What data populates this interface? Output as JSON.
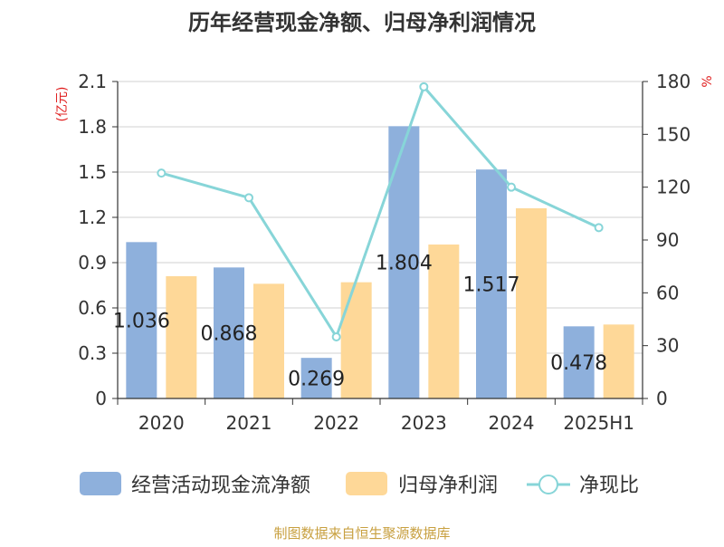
{
  "chart_data": {
    "type": "bar",
    "title": "历年经营现金净额、归母净利润情况",
    "categories": [
      "2020",
      "2021",
      "2022",
      "2023",
      "2024",
      "2025H1"
    ],
    "series": [
      {
        "name": "经营活动现金流净额",
        "type": "bar",
        "axis": "left",
        "values": [
          1.036,
          0.868,
          0.269,
          1.804,
          1.517,
          0.478
        ],
        "data_labels": [
          "1.036",
          "0.868",
          "0.269",
          "1.804",
          "1.517",
          "0.478"
        ]
      },
      {
        "name": "归母净利润",
        "type": "bar",
        "axis": "left",
        "values": [
          0.81,
          0.76,
          0.77,
          1.02,
          1.26,
          0.49
        ]
      },
      {
        "name": "净现比",
        "type": "line",
        "axis": "right",
        "values": [
          128,
          114,
          35,
          177,
          120,
          97
        ]
      }
    ],
    "y_left": {
      "unit": "(亿元)",
      "ylim": [
        0,
        2.1
      ],
      "ticks": [
        "0",
        "0.3",
        "0.6",
        "0.9",
        "1.2",
        "1.5",
        "1.8",
        "2.1"
      ]
    },
    "y_right": {
      "unit": "%",
      "ylim": [
        0,
        180
      ],
      "ticks": [
        "0",
        "30",
        "60",
        "90",
        "120",
        "150",
        "180"
      ]
    },
    "grid": true,
    "legend_position": "bottom",
    "colors": {
      "bar1": "#8eb0dc",
      "bar2": "#fed898",
      "line": "#87d5d8",
      "unit_text": "#e02020",
      "title": "#333333"
    }
  },
  "source_note": "制图数据来自恒生聚源数据库"
}
